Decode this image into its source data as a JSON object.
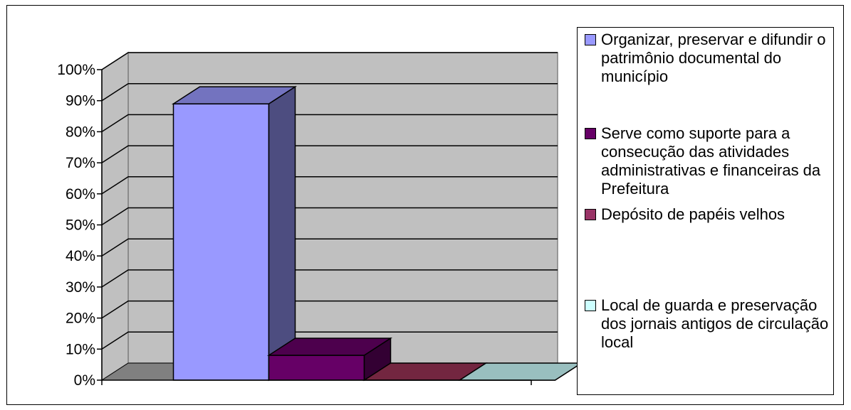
{
  "chart_data": {
    "type": "bar",
    "three_d": true,
    "title": "",
    "xlabel": "",
    "ylabel": "",
    "ylim": [
      0,
      100
    ],
    "y_tick_step": 10,
    "y_tick_format": "{v}%",
    "grid": true,
    "legend_position": "right",
    "wall_color": "#c0c0c0",
    "floor_color": "#808080",
    "categories": [
      "Organizar, preservar e difundir o patrimônio documental do município",
      "Serve como suporte para a consecução das atividades administrativas e financeiras da Prefeitura",
      "Depósito de papéis velhos",
      "Local de guarda e preservação dos jornais antigos de circulação local"
    ],
    "values": [
      89,
      8,
      0,
      0
    ],
    "colors": [
      "#9999ff",
      "#660066",
      "#993366",
      "#ccffff"
    ],
    "side_colors": [
      "#4d4d80",
      "#330033",
      "#4d1a33",
      "#668080"
    ],
    "top_colors": [
      "#7373bf",
      "#4d004d",
      "#732640",
      "#99bfbf"
    ]
  }
}
